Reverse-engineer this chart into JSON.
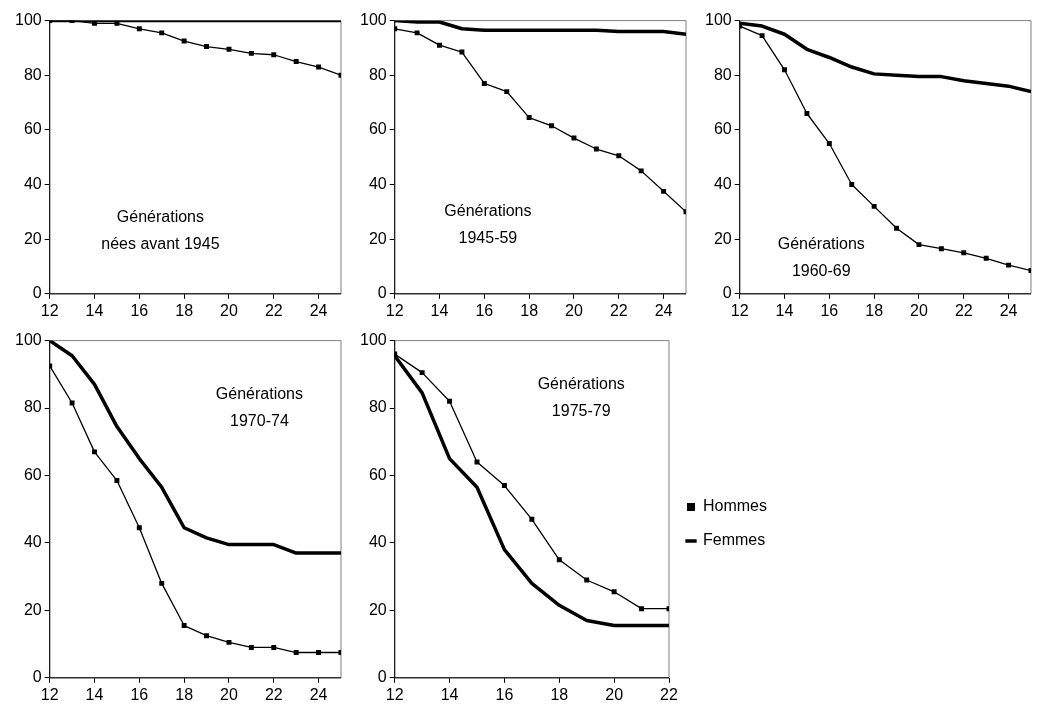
{
  "chart_data": [
    {
      "type": "line",
      "x": [
        12,
        13,
        14,
        15,
        16,
        17,
        18,
        19,
        20,
        21,
        22,
        23,
        24,
        25
      ],
      "xlim": [
        12,
        25
      ],
      "xticks": [
        12,
        14,
        16,
        18,
        20,
        22,
        24
      ],
      "ylim": [
        0,
        100
      ],
      "yticks": [
        0,
        20,
        40,
        60,
        80,
        100
      ],
      "grid": false,
      "legend": false,
      "annotations": [
        "Générations\nnées avant 1945"
      ],
      "series": [
        {
          "color": "#000000",
          "marker": "square",
          "values": [
            100,
            100,
            99,
            99,
            97,
            95.5,
            92.5,
            90.5,
            89.5,
            88,
            87.5,
            85,
            83,
            80
          ]
        },
        {
          "color": "#000000",
          "marker": "none",
          "values": [
            100,
            100,
            100,
            100,
            100,
            100,
            100,
            100,
            100,
            100,
            100,
            100,
            100,
            100
          ]
        }
      ]
    },
    {
      "type": "line",
      "x": [
        12,
        13,
        14,
        15,
        16,
        17,
        18,
        19,
        20,
        21,
        22,
        23,
        24,
        25
      ],
      "xlim": [
        12,
        25
      ],
      "xticks": [
        12,
        14,
        16,
        18,
        20,
        22,
        24
      ],
      "ylim": [
        0,
        100
      ],
      "yticks": [
        0,
        20,
        40,
        60,
        80,
        100
      ],
      "grid": false,
      "legend": false,
      "annotations": [
        "Générations\n1945-59"
      ],
      "series": [
        {
          "color": "#000000",
          "marker": "square",
          "values": [
            97,
            95.5,
            91,
            88.5,
            77,
            74,
            64.5,
            61.5,
            57,
            53,
            50.5,
            45,
            37.5,
            30
          ]
        },
        {
          "color": "#000000",
          "marker": "none",
          "values": [
            100,
            99.5,
            99.5,
            97,
            96.5,
            96.5,
            96.5,
            96.5,
            96.5,
            96.5,
            96,
            96,
            96,
            95
          ]
        }
      ]
    },
    {
      "type": "line",
      "x": [
        12,
        13,
        14,
        15,
        16,
        17,
        18,
        19,
        20,
        21,
        22,
        23,
        24,
        25
      ],
      "xlim": [
        12,
        25
      ],
      "xticks": [
        12,
        14,
        16,
        18,
        20,
        22,
        24
      ],
      "ylim": [
        0,
        100
      ],
      "yticks": [
        0,
        20,
        40,
        60,
        80,
        100
      ],
      "grid": false,
      "legend": false,
      "annotations": [
        "Générations\n1960-69"
      ],
      "series": [
        {
          "color": "#000000",
          "marker": "square",
          "values": [
            98,
            94.5,
            82,
            66,
            55,
            40,
            32,
            24,
            18,
            16.5,
            15,
            13,
            10.5,
            8.5
          ]
        },
        {
          "color": "#000000",
          "marker": "none",
          "values": [
            99,
            98,
            95,
            89.5,
            86.5,
            83,
            80.5,
            80,
            79.5,
            79.5,
            78,
            77,
            76,
            74
          ]
        }
      ]
    },
    {
      "type": "line",
      "x": [
        12,
        13,
        14,
        15,
        16,
        17,
        18,
        19,
        20,
        21,
        22,
        23,
        24,
        25
      ],
      "xlim": [
        12,
        25
      ],
      "xticks": [
        12,
        14,
        16,
        18,
        20,
        22,
        24
      ],
      "ylim": [
        0,
        100
      ],
      "yticks": [
        0,
        20,
        40,
        60,
        80,
        100
      ],
      "grid": false,
      "legend": false,
      "annotations": [
        "Générations\n1970-74"
      ],
      "series": [
        {
          "color": "#000000",
          "marker": "square",
          "values": [
            92.5,
            81.5,
            67,
            58.5,
            44.5,
            28,
            15.5,
            12.5,
            10.5,
            9,
            9,
            7.5,
            7.5,
            7.5
          ]
        },
        {
          "color": "#000000",
          "marker": "none",
          "values": [
            100,
            95.5,
            87,
            74.5,
            65,
            56.5,
            44.5,
            41.5,
            39.5,
            39.5,
            39.5,
            37,
            37,
            37
          ]
        }
      ]
    },
    {
      "type": "line",
      "x": [
        12,
        13,
        14,
        15,
        16,
        17,
        18,
        19,
        20,
        21,
        22
      ],
      "xlim": [
        12,
        22
      ],
      "xticks": [
        12,
        14,
        16,
        18,
        20,
        22
      ],
      "ylim": [
        0,
        100
      ],
      "yticks": [
        0,
        20,
        40,
        60,
        80,
        100
      ],
      "grid": false,
      "legend": "right",
      "annotations": [
        "Générations\n1975-79"
      ],
      "series": [
        {
          "name": "Hommes",
          "color": "#000000",
          "marker": "square",
          "values": [
            96,
            90.5,
            82,
            64,
            57,
            47,
            35,
            29,
            25.5,
            20.5,
            20.5
          ]
        },
        {
          "name": "Femmes",
          "color": "#000000",
          "marker": "none",
          "values": [
            95.5,
            84.5,
            65,
            56.5,
            38,
            28,
            21.5,
            17,
            15.5,
            15.5,
            15.5
          ]
        }
      ]
    }
  ]
}
